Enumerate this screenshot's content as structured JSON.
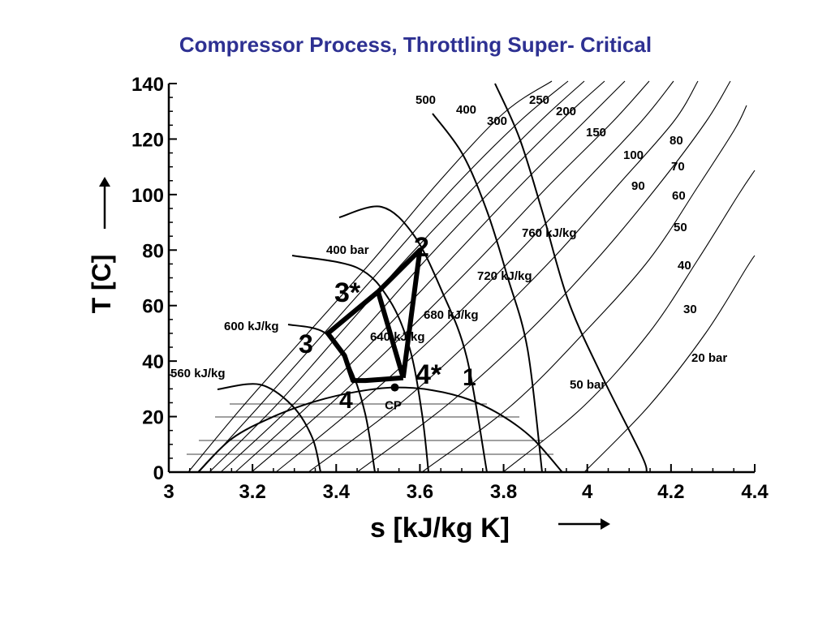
{
  "slide": {
    "title": "Compressor Process, Throttling Super- Critical"
  },
  "chart_data": {
    "type": "line",
    "xlabel": "s [kJ/kg K]",
    "ylabel": "T [C]",
    "xlim": [
      3.0,
      4.4
    ],
    "ylim": [
      0,
      140
    ],
    "x_ticks": [
      "3",
      "3.2",
      "3.4",
      "3.6",
      "3.8",
      "4",
      "4.2",
      "4.4"
    ],
    "y_ticks": [
      "0",
      "20",
      "40",
      "60",
      "80",
      "100",
      "120",
      "140"
    ],
    "grid": false,
    "saturation_dome": {
      "critical_point_label": "CP",
      "critical_point": [
        3.54,
        30.5
      ],
      "curve": [
        [
          3.07,
          0
        ],
        [
          3.15,
          12
        ],
        [
          3.25,
          20
        ],
        [
          3.35,
          25.5
        ],
        [
          3.45,
          29
        ],
        [
          3.54,
          30.5
        ],
        [
          3.63,
          29.5
        ],
        [
          3.72,
          26
        ],
        [
          3.8,
          20
        ],
        [
          3.87,
          12
        ],
        [
          3.94,
          0
        ]
      ]
    },
    "isobar_labels": [
      "500",
      "400",
      "300",
      "250",
      "200",
      "150",
      "100",
      "90",
      "80",
      "70",
      "60",
      "50",
      "40",
      "30",
      "20 bar",
      "50 bar",
      "400 bar"
    ],
    "isenthalp_labels": [
      "560 kJ/kg",
      "600 kJ/kg",
      "640 kJ/kg",
      "680 kJ/kg",
      "720 kJ/kg",
      "760 kJ/kg"
    ],
    "process_cycle": {
      "points": [
        {
          "label": "1",
          "s": 3.57,
          "T": 36
        },
        {
          "label": "2",
          "s": 3.6,
          "T": 80
        },
        {
          "label": "3*",
          "s": 3.5,
          "T": 65
        },
        {
          "label": "3",
          "s": 3.38,
          "T": 50
        },
        {
          "label": "4",
          "s": 3.44,
          "T": 31
        },
        {
          "label": "4*",
          "s": 3.56,
          "T": 34
        }
      ],
      "path": [
        [
          3.56,
          34
        ],
        [
          3.6,
          80
        ],
        [
          3.5,
          65
        ],
        [
          3.38,
          50
        ],
        [
          3.42,
          42
        ],
        [
          3.44,
          33
        ],
        [
          3.47,
          33
        ],
        [
          3.56,
          34
        ]
      ],
      "inner_path": [
        [
          3.5,
          65
        ],
        [
          3.56,
          34
        ]
      ]
    }
  }
}
